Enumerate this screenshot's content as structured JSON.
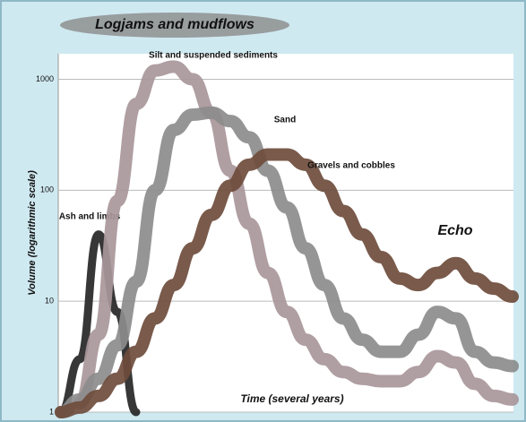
{
  "chart_data": {
    "type": "line",
    "title": "Logjams and mudflows",
    "ylabel": "Volume (logarithmic scale)",
    "xlabel": "Time (several years)",
    "annotation": "Echo",
    "log_scale": true,
    "grid": true,
    "ylim": [
      1,
      1700
    ],
    "yticks": [
      1,
      10,
      100,
      1000
    ],
    "categories": [
      null,
      null,
      null,
      null,
      null,
      null,
      null,
      null,
      null,
      null,
      null,
      null,
      null,
      null,
      null,
      null,
      null,
      null,
      null,
      null,
      null,
      null,
      null,
      null,
      null
    ],
    "series": [
      {
        "name": "Ash and limbs",
        "color": "#262626",
        "values": [
          1,
          3,
          40,
          8,
          1,
          null,
          null,
          null,
          null,
          null,
          null,
          null,
          null,
          null,
          null,
          null,
          null,
          null,
          null,
          null,
          null,
          null,
          null,
          null,
          null
        ]
      },
      {
        "name": "Silt and suspended sediments",
        "color": "#a8969a",
        "values": [
          null,
          1.2,
          5,
          80,
          600,
          1200,
          1300,
          1000,
          500,
          150,
          50,
          18,
          8,
          4.5,
          3,
          2.3,
          2,
          1.9,
          1.9,
          2.3,
          3.2,
          2.8,
          1.8,
          1.4,
          1.3
        ]
      },
      {
        "name": "Sand",
        "color": "#8c8c8c",
        "values": [
          1,
          1.3,
          2,
          4,
          15,
          100,
          350,
          480,
          500,
          420,
          300,
          150,
          70,
          30,
          14,
          7,
          4.5,
          3.5,
          3.5,
          5,
          8,
          7,
          3.5,
          2.8,
          2.6
        ]
      },
      {
        "name": "Gravels and cobbles",
        "color": "#6e4c3c",
        "values": [
          1,
          1.1,
          1.4,
          2,
          3.5,
          7,
          14,
          30,
          60,
          110,
          170,
          210,
          210,
          170,
          110,
          65,
          40,
          25,
          16,
          14,
          18,
          22,
          16,
          13,
          11
        ]
      }
    ]
  }
}
